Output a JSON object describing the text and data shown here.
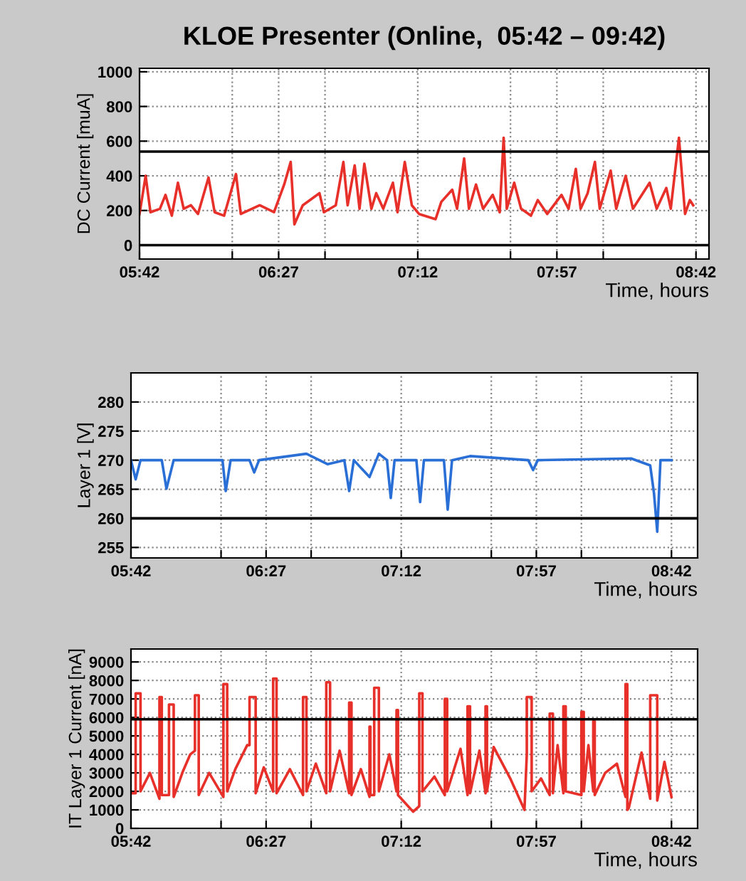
{
  "chart_data": [
    {
      "type": "line",
      "title": "KLOE Presenter (Online,  05:42 – 09:42)",
      "xlabel": "Time, hours",
      "ylabel": "DC Current [muA]",
      "grid": true,
      "marker": "none",
      "line_style": "solid",
      "xlim": [
        5.7,
        8.77
      ],
      "xticks": [
        {
          "value": 5.7,
          "label": "05:42"
        },
        {
          "value": 6.2,
          "label": null
        },
        {
          "value": 6.45,
          "label": "06:27"
        },
        {
          "value": 6.7,
          "label": null
        },
        {
          "value": 7.2,
          "label": "07:12"
        },
        {
          "value": 7.7,
          "label": null
        },
        {
          "value": 7.95,
          "label": "07:57"
        },
        {
          "value": 8.2,
          "label": null
        },
        {
          "value": 8.7,
          "label": "08:42"
        }
      ],
      "ylim": [
        -80,
        1020
      ],
      "yticks": [
        0,
        200,
        400,
        600,
        800,
        1000
      ],
      "ref_lines": [
        {
          "axis": "y",
          "value": 0,
          "color": "#000000"
        },
        {
          "axis": "y",
          "value": 540,
          "color": "#000000"
        }
      ],
      "series": [
        {
          "color": "#e8302a",
          "x": [
            5.7,
            5.733,
            5.759,
            5.81,
            5.84,
            5.874,
            5.907,
            5.938,
            5.977,
            6.015,
            6.072,
            6.105,
            6.156,
            6.22,
            6.246,
            6.348,
            6.425,
            6.48,
            6.515,
            6.535,
            6.58,
            6.67,
            6.694,
            6.758,
            6.799,
            6.822,
            6.86,
            6.886,
            6.912,
            6.95,
            6.976,
            7.014,
            7.066,
            7.091,
            7.13,
            7.168,
            7.207,
            7.296,
            7.327,
            7.386,
            7.412,
            7.45,
            7.476,
            7.514,
            7.552,
            7.604,
            7.642,
            7.663,
            7.68,
            7.72,
            7.757,
            7.81,
            7.847,
            7.898,
            7.975,
            8.013,
            8.052,
            8.078,
            8.116,
            8.155,
            8.181,
            8.24,
            8.27,
            8.321,
            8.36,
            8.45,
            8.488,
            8.54,
            8.564,
            8.608,
            8.641,
            8.667,
            8.685
          ],
          "values": [
            180,
            400,
            190,
            210,
            290,
            170,
            360,
            210,
            230,
            180,
            390,
            190,
            170,
            410,
            180,
            230,
            190,
            350,
            480,
            120,
            230,
            300,
            190,
            230,
            480,
            230,
            460,
            210,
            470,
            210,
            300,
            210,
            360,
            190,
            480,
            230,
            180,
            150,
            250,
            320,
            210,
            500,
            210,
            350,
            210,
            290,
            190,
            620,
            210,
            360,
            210,
            170,
            260,
            180,
            290,
            210,
            440,
            210,
            300,
            480,
            210,
            430,
            210,
            400,
            210,
            360,
            210,
            330,
            210,
            620,
            180,
            260,
            230
          ]
        }
      ]
    },
    {
      "type": "line",
      "xlabel": "Time, hours",
      "ylabel": "Layer 1 [V]",
      "grid": true,
      "marker": "none",
      "line_style": "solid",
      "xlim": [
        5.7,
        8.845
      ],
      "xticks": [
        {
          "value": 5.7,
          "label": "05:42"
        },
        {
          "value": 6.2,
          "label": null
        },
        {
          "value": 6.45,
          "label": "06:27"
        },
        {
          "value": 6.7,
          "label": null
        },
        {
          "value": 7.2,
          "label": "07:12"
        },
        {
          "value": 7.7,
          "label": null
        },
        {
          "value": 7.95,
          "label": "07:57"
        },
        {
          "value": 8.2,
          "label": null
        },
        {
          "value": 8.7,
          "label": "08:42"
        }
      ],
      "ylim": [
        253.2,
        285
      ],
      "yticks": [
        255,
        260,
        265,
        270,
        275,
        280
      ],
      "ref_lines": [
        {
          "axis": "y",
          "value": 260,
          "color": "#000000"
        }
      ],
      "series": [
        {
          "color": "#2a6fd6",
          "x": [
            5.7,
            5.726,
            5.753,
            5.871,
            5.897,
            5.937,
            6.208,
            6.226,
            6.253,
            6.358,
            6.384,
            6.411,
            6.674,
            6.792,
            6.884,
            6.911,
            6.937,
            7.024,
            7.076,
            7.121,
            7.142,
            7.163,
            7.284,
            7.305,
            7.326,
            7.437,
            7.458,
            7.482,
            7.582,
            7.905,
            7.932,
            7.958,
            8.476,
            8.582,
            8.603,
            8.621,
            8.639,
            8.7
          ],
          "values": [
            270,
            266.7,
            270,
            270,
            265.1,
            270,
            270,
            264.7,
            270,
            270,
            267.9,
            270,
            271.1,
            269.3,
            270,
            264.7,
            270,
            267.1,
            271.1,
            270,
            263.5,
            270,
            270,
            262.8,
            270,
            270,
            261.5,
            270,
            270.7,
            270,
            268.3,
            270,
            270.3,
            269.1,
            264.3,
            257.7,
            270,
            270
          ]
        }
      ]
    },
    {
      "type": "line",
      "xlabel": "Time, hours",
      "ylabel": "IT Layer 1 Current [nA]",
      "grid": true,
      "marker": "none",
      "line_style": "solid",
      "xlim": [
        5.7,
        8.845
      ],
      "xticks": [
        {
          "value": 5.7,
          "label": "05:42"
        },
        {
          "value": 6.2,
          "label": null
        },
        {
          "value": 6.45,
          "label": "06:27"
        },
        {
          "value": 6.7,
          "label": null
        },
        {
          "value": 7.2,
          "label": "07:12"
        },
        {
          "value": 7.7,
          "label": null
        },
        {
          "value": 7.95,
          "label": "07:57"
        },
        {
          "value": 8.2,
          "label": null
        },
        {
          "value": 8.7,
          "label": "08:42"
        }
      ],
      "ylim": [
        0,
        9700
      ],
      "yticks": [
        0,
        1000,
        2000,
        3000,
        4000,
        5000,
        6000,
        7000,
        8000,
        9000
      ],
      "ref_lines": [
        {
          "axis": "y",
          "value": 5900,
          "color": "#000000"
        }
      ],
      "series": [
        {
          "color": "#e8302a",
          "x": [
            5.7,
            5.726,
            5.726,
            5.753,
            5.753,
            5.805,
            5.858,
            5.858,
            5.871,
            5.871,
            5.911,
            5.911,
            5.937,
            5.937,
            5.989,
            6.029,
            6.055,
            6.055,
            6.076,
            6.076,
            6.134,
            6.213,
            6.213,
            6.234,
            6.234,
            6.279,
            6.345,
            6.358,
            6.358,
            6.392,
            6.392,
            6.437,
            6.489,
            6.489,
            6.508,
            6.508,
            6.582,
            6.655,
            6.655,
            6.674,
            6.674,
            6.726,
            6.784,
            6.784,
            6.805,
            6.805,
            6.858,
            6.911,
            6.911,
            6.924,
            6.924,
            6.976,
            7.024,
            7.024,
            7.029,
            7.029,
            7.05,
            7.05,
            7.076,
            7.076,
            7.134,
            7.174,
            7.174,
            7.182,
            7.182,
            7.266,
            7.3,
            7.3,
            7.318,
            7.318,
            7.384,
            7.442,
            7.442,
            7.455,
            7.455,
            7.529,
            7.568,
            7.568,
            7.582,
            7.582,
            7.634,
            7.668,
            7.668,
            7.676,
            7.676,
            7.713,
            7.805,
            7.884,
            7.897,
            7.897,
            7.924,
            7.924,
            7.976,
            8.024,
            8.024,
            8.042,
            8.042,
            8.068,
            8.1,
            8.1,
            8.113,
            8.113,
            8.2,
            8.2,
            8.213,
            8.213,
            8.239,
            8.266,
            8.266,
            8.274,
            8.274,
            8.332,
            8.397,
            8.445,
            8.445,
            8.455,
            8.455,
            8.463,
            8.534,
            8.582,
            8.582,
            8.621,
            8.621,
            8.661,
            8.7
          ],
          "values": [
            1900,
            1900,
            7300,
            7300,
            2000,
            3000,
            1600,
            7100,
            7100,
            1800,
            1800,
            6700,
            6700,
            1700,
            3100,
            4000,
            4200,
            7200,
            7200,
            1800,
            3000,
            1700,
            7800,
            7800,
            2000,
            3200,
            4500,
            4500,
            7100,
            7100,
            1900,
            3300,
            2000,
            8100,
            8100,
            1900,
            3200,
            1800,
            7100,
            7100,
            2000,
            3500,
            1900,
            7900,
            7900,
            2000,
            4200,
            1900,
            6800,
            6800,
            1800,
            3200,
            1700,
            5500,
            5500,
            1800,
            1800,
            7600,
            7600,
            2000,
            4000,
            2000,
            6400,
            6400,
            1800,
            900,
            1200,
            7300,
            7300,
            2000,
            2800,
            1800,
            7000,
            7000,
            2000,
            4300,
            1800,
            6600,
            6600,
            1900,
            4200,
            1900,
            6600,
            6600,
            2000,
            4400,
            2700,
            1000,
            4000,
            7100,
            7100,
            2000,
            2700,
            1800,
            6200,
            6200,
            1900,
            4500,
            1900,
            6600,
            6600,
            2000,
            1800,
            6300,
            6300,
            2000,
            4500,
            2000,
            5800,
            5800,
            1800,
            3000,
            3500,
            1700,
            7800,
            7800,
            1000,
            1100,
            4100,
            1600,
            7200,
            7200,
            1500,
            3600,
            1700
          ]
        }
      ]
    }
  ]
}
